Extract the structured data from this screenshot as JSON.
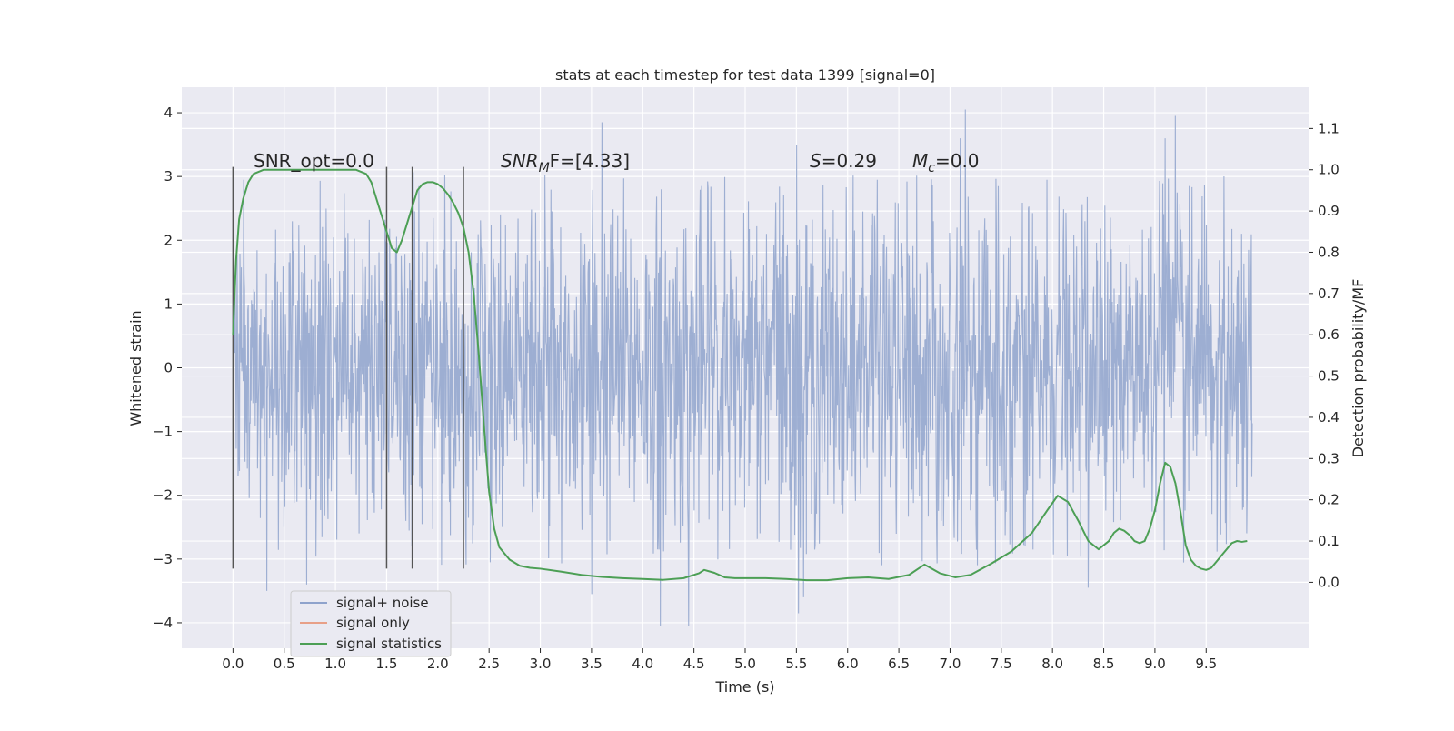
{
  "chart_data": {
    "type": "line",
    "title": "stats at each timestep for test data 1399 [signal=0]",
    "xlabel": "Time (s)",
    "ylabel": "Whitened strain",
    "ylabel_right": "Detection probability/MF",
    "xlim": [
      -0.5,
      10.5
    ],
    "ylim": [
      -4.4,
      4.4
    ],
    "ylim_right": [
      -0.16,
      1.2
    ],
    "x_ticks": [
      0.0,
      0.5,
      1.0,
      1.5,
      2.0,
      2.5,
      3.0,
      3.5,
      4.0,
      4.5,
      5.0,
      5.5,
      6.0,
      6.5,
      7.0,
      7.5,
      8.0,
      8.5,
      9.0,
      9.5
    ],
    "x_tick_labels": [
      "0.0",
      "0.5",
      "1.0",
      "1.5",
      "2.0",
      "2.5",
      "3.0",
      "3.5",
      "4.0",
      "4.5",
      "5.0",
      "5.5",
      "6.0",
      "6.5",
      "7.0",
      "7.5",
      "8.0",
      "8.5",
      "9.0",
      "9.5"
    ],
    "y_ticks": [
      -4,
      -3,
      -2,
      -1,
      0,
      1,
      2,
      3,
      4
    ],
    "y_tick_labels": [
      "−4",
      "−3",
      "−2",
      "−1",
      "0",
      "1",
      "2",
      "3",
      "4"
    ],
    "y_right_ticks": [
      0.0,
      0.1,
      0.2,
      0.3,
      0.4,
      0.5,
      0.6,
      0.7,
      0.8,
      0.9,
      1.0,
      1.1
    ],
    "y_right_tick_labels": [
      "0.0",
      "0.1",
      "0.2",
      "0.3",
      "0.4",
      "0.5",
      "0.6",
      "0.7",
      "0.8",
      "0.9",
      "1.0",
      "1.1"
    ],
    "grid": true,
    "legend_position": "lower-left",
    "legend": [
      {
        "label": "signal+ noise",
        "color": "#8fa3cc"
      },
      {
        "label": "signal only",
        "color": "#e8a088"
      },
      {
        "label": "signal statistics",
        "color": "#4c9f55"
      }
    ],
    "annotations": {
      "snr_opt": "SNR_opt=0.0",
      "snr_mf_main": "SNR",
      "snr_mf_sub": "M",
      "snr_mf_rest": "F=[4.33]",
      "s_main": "S",
      "s_rest": "=0.29",
      "mc_main": "M",
      "mc_sub": "c",
      "mc_rest": "=0.0"
    },
    "vertical_markers": [
      0.0,
      1.5,
      1.75,
      2.25
    ],
    "marker_ylim": [
      -3.15,
      3.15
    ],
    "noise_series": {
      "name": "signal+ noise",
      "color": "#8fa3cc",
      "x_start": 0.0,
      "x_end": 9.95,
      "typical_range": [
        -2.9,
        3.3
      ],
      "extreme_peaks": [
        [
          0.33,
          -3.5
        ],
        [
          0.72,
          -3.4
        ],
        [
          3.6,
          3.85
        ],
        [
          3.5,
          -3.55
        ],
        [
          4.17,
          -4.05
        ],
        [
          4.45,
          -4.05
        ],
        [
          5.5,
          3.5
        ],
        [
          5.52,
          -3.85
        ],
        [
          5.57,
          -3.6
        ],
        [
          7.15,
          4.05
        ],
        [
          7.1,
          3.6
        ],
        [
          8.35,
          -3.45
        ],
        [
          9.2,
          3.95
        ],
        [
          9.1,
          3.6
        ]
      ]
    },
    "series": [
      {
        "name": "signal statistics",
        "color": "#4c9f55",
        "axis": "right",
        "x": [
          0.0,
          0.03,
          0.06,
          0.1,
          0.15,
          0.2,
          0.3,
          0.45,
          0.7,
          1.0,
          1.2,
          1.3,
          1.35,
          1.4,
          1.45,
          1.5,
          1.55,
          1.6,
          1.65,
          1.7,
          1.75,
          1.8,
          1.85,
          1.9,
          1.95,
          2.0,
          2.05,
          2.1,
          2.15,
          2.2,
          2.25,
          2.3,
          2.35,
          2.4,
          2.45,
          2.5,
          2.55,
          2.6,
          2.7,
          2.8,
          2.9,
          3.0,
          3.2,
          3.4,
          3.6,
          3.8,
          4.0,
          4.2,
          4.4,
          4.55,
          4.6,
          4.7,
          4.8,
          4.9,
          5.0,
          5.2,
          5.4,
          5.6,
          5.8,
          6.0,
          6.2,
          6.4,
          6.6,
          6.75,
          6.9,
          7.05,
          7.2,
          7.4,
          7.6,
          7.8,
          7.95,
          8.05,
          8.15,
          8.25,
          8.35,
          8.45,
          8.55,
          8.6,
          8.65,
          8.7,
          8.75,
          8.8,
          8.85,
          8.9,
          8.95,
          9.0,
          9.05,
          9.1,
          9.15,
          9.2,
          9.25,
          9.3,
          9.35,
          9.4,
          9.45,
          9.5,
          9.55,
          9.6,
          9.65,
          9.7,
          9.75,
          9.8,
          9.85,
          9.9
        ],
        "values": [
          0.6,
          0.78,
          0.88,
          0.93,
          0.97,
          0.99,
          1.0,
          1.0,
          1.0,
          1.0,
          1.0,
          0.99,
          0.97,
          0.93,
          0.89,
          0.85,
          0.81,
          0.8,
          0.83,
          0.87,
          0.91,
          0.95,
          0.965,
          0.97,
          0.97,
          0.965,
          0.955,
          0.94,
          0.92,
          0.895,
          0.86,
          0.8,
          0.7,
          0.55,
          0.38,
          0.22,
          0.13,
          0.085,
          0.055,
          0.04,
          0.035,
          0.033,
          0.026,
          0.018,
          0.013,
          0.01,
          0.008,
          0.006,
          0.01,
          0.022,
          0.03,
          0.023,
          0.012,
          0.01,
          0.01,
          0.01,
          0.008,
          0.005,
          0.005,
          0.01,
          0.012,
          0.008,
          0.018,
          0.043,
          0.022,
          0.012,
          0.018,
          0.045,
          0.075,
          0.12,
          0.175,
          0.21,
          0.195,
          0.15,
          0.1,
          0.08,
          0.1,
          0.12,
          0.13,
          0.125,
          0.115,
          0.1,
          0.095,
          0.1,
          0.13,
          0.175,
          0.24,
          0.29,
          0.28,
          0.24,
          0.17,
          0.09,
          0.055,
          0.04,
          0.033,
          0.03,
          0.035,
          0.05,
          0.065,
          0.08,
          0.095,
          0.1,
          0.098,
          0.1
        ]
      }
    ]
  }
}
